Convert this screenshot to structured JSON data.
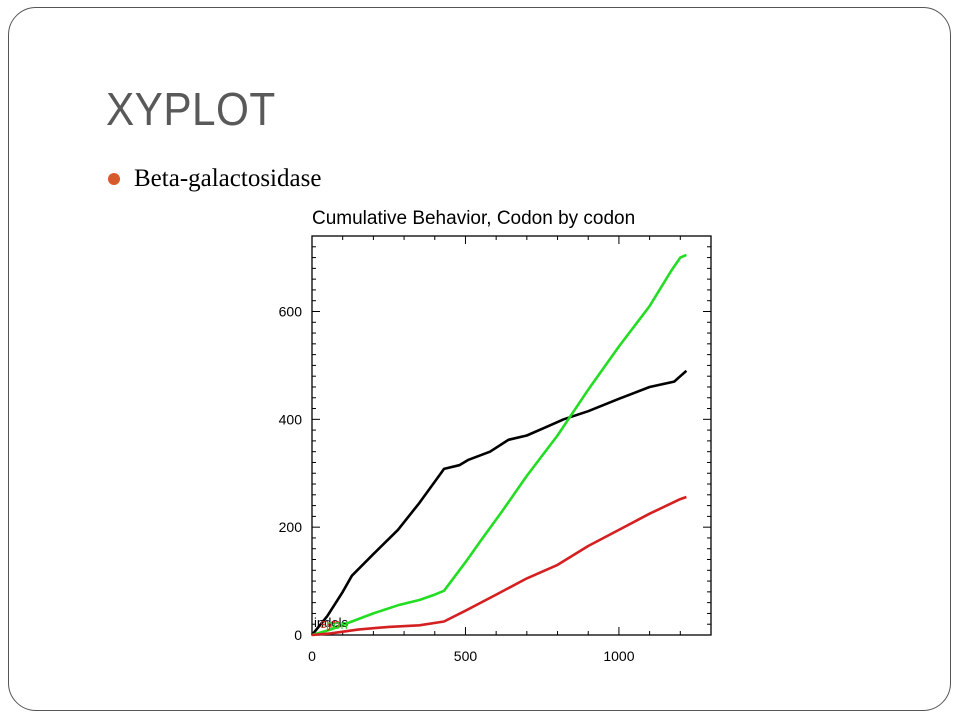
{
  "slide": {
    "title": "XYPLOT",
    "bullets": [
      "Beta-galactosidase"
    ],
    "bullet_color": "#d65a2a"
  },
  "chart_data": {
    "type": "line",
    "title": "Cumulative Behavior, Codon by codon",
    "xlabel": "",
    "ylabel": "",
    "xlim": [
      0,
      1300
    ],
    "ylim": [
      0,
      740
    ],
    "x_ticks": [
      0,
      500,
      1000
    ],
    "y_ticks": [
      0,
      200,
      400,
      600
    ],
    "grid": false,
    "legend_labels": [
      {
        "text": "indels",
        "color": "#000000"
      },
      {
        "text": "syn",
        "color": "#d42020"
      },
      {
        "text": "non",
        "color": "#22dd22"
      }
    ],
    "series": [
      {
        "color": "#000000",
        "points": [
          [
            0,
            0
          ],
          [
            50,
            35
          ],
          [
            100,
            80
          ],
          [
            130,
            110
          ],
          [
            200,
            150
          ],
          [
            280,
            195
          ],
          [
            350,
            245
          ],
          [
            420,
            300
          ],
          [
            430,
            308
          ],
          [
            480,
            315
          ],
          [
            510,
            325
          ],
          [
            580,
            340
          ],
          [
            640,
            362
          ],
          [
            700,
            370
          ],
          [
            760,
            385
          ],
          [
            820,
            400
          ],
          [
            900,
            415
          ],
          [
            1000,
            438
          ],
          [
            1100,
            460
          ],
          [
            1180,
            470
          ],
          [
            1220,
            490
          ]
        ]
      },
      {
        "color": "#22dd22",
        "points": [
          [
            0,
            0
          ],
          [
            60,
            10
          ],
          [
            130,
            25
          ],
          [
            200,
            40
          ],
          [
            280,
            55
          ],
          [
            350,
            65
          ],
          [
            400,
            75
          ],
          [
            430,
            82
          ],
          [
            500,
            135
          ],
          [
            550,
            175
          ],
          [
            620,
            230
          ],
          [
            700,
            295
          ],
          [
            800,
            370
          ],
          [
            900,
            455
          ],
          [
            1000,
            535
          ],
          [
            1100,
            610
          ],
          [
            1170,
            675
          ],
          [
            1200,
            700
          ],
          [
            1220,
            705
          ]
        ]
      },
      {
        "color": "#d42020",
        "points": [
          [
            0,
            0
          ],
          [
            60,
            3
          ],
          [
            150,
            10
          ],
          [
            250,
            15
          ],
          [
            350,
            18
          ],
          [
            430,
            25
          ],
          [
            500,
            45
          ],
          [
            600,
            75
          ],
          [
            700,
            105
          ],
          [
            800,
            130
          ],
          [
            900,
            165
          ],
          [
            1000,
            195
          ],
          [
            1100,
            225
          ],
          [
            1200,
            252
          ],
          [
            1220,
            256
          ]
        ]
      }
    ]
  }
}
